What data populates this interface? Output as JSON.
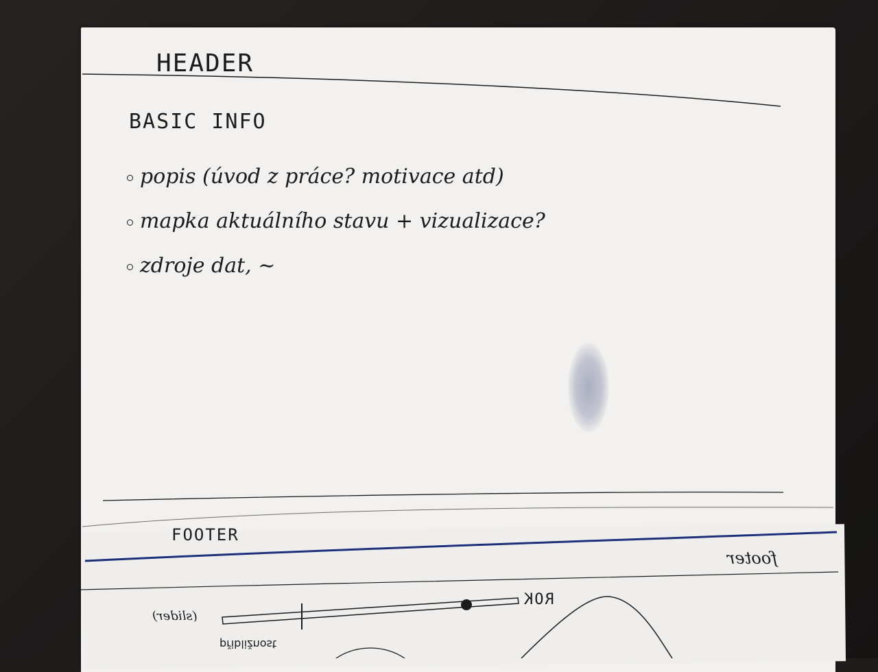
{
  "sketch": {
    "header_label": "HEADER",
    "section_title": "BASIC INFO",
    "bullets": [
      "popis (úvod z práce? motivace atd)",
      "mapka aktuálního stavu + vizualizace?",
      "zdroje dat, ~"
    ],
    "footer_label": "FOOTER",
    "footer_mirrored": "footer",
    "slider_label": "(slider)",
    "slider_year_label": "ROK",
    "slider_under_label": "přibližnost"
  },
  "colors": {
    "paper": "#f2f1ef",
    "ink": "#1b1b1b",
    "blue_ink": "#1d2f7a",
    "desk": "#1f1d1c"
  }
}
